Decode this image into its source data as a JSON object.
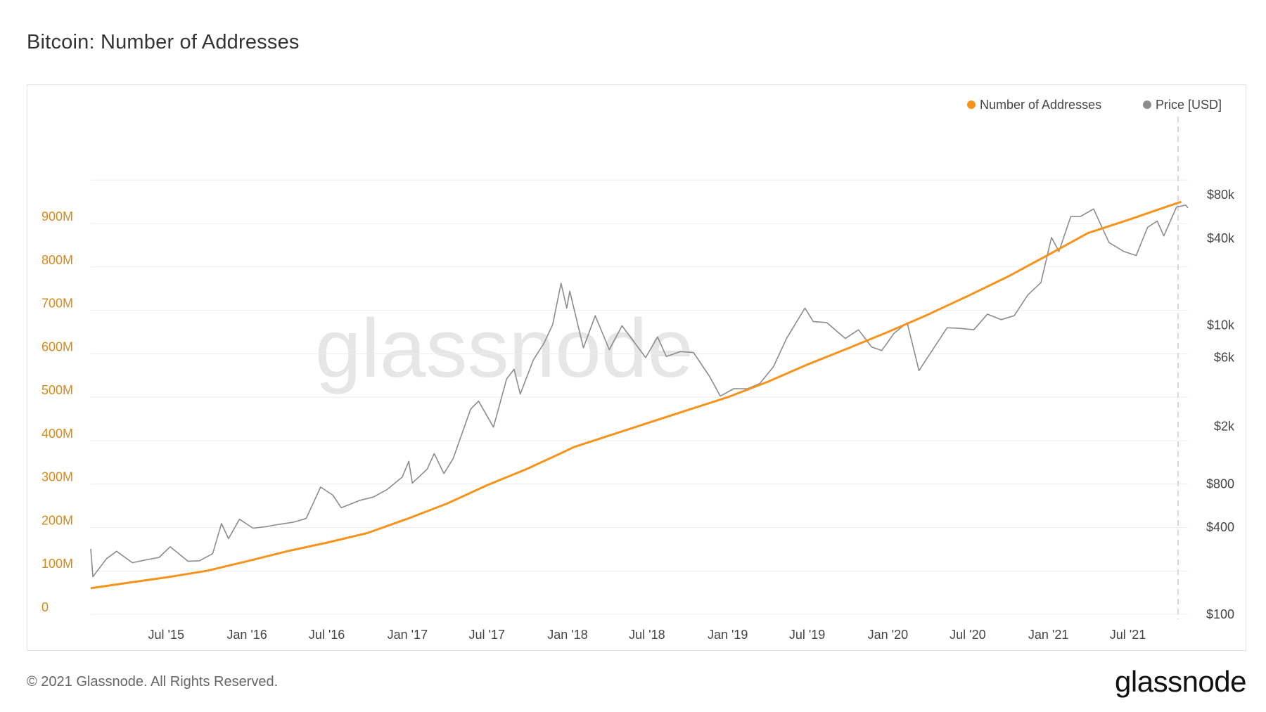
{
  "title": "Bitcoin: Number of Addresses",
  "footer": {
    "copyright": "© 2021 Glassnode. All Rights Reserved.",
    "brand": "glassnode"
  },
  "watermark": "glassnode",
  "colors": {
    "addresses": "#f7931a",
    "price": "#8c8c8c",
    "left_axis_text": "#d98a19",
    "right_axis_text": "#444444",
    "grid": "#eeeeee",
    "watermark": "#e6e6e6"
  },
  "chart_data": {
    "type": "line",
    "legend": [
      {
        "name": "Number of Addresses",
        "color": "#f7931a"
      },
      {
        "name": "Price [USD]",
        "color": "#8c8c8c"
      }
    ],
    "legend_position": "top-right",
    "x_range": [
      "2015-01-10",
      "2021-11-15"
    ],
    "x_ticks": [
      {
        "label": "Jul '15",
        "date": "2015-07-01"
      },
      {
        "label": "Jan '16",
        "date": "2016-01-01"
      },
      {
        "label": "Jul '16",
        "date": "2016-07-01"
      },
      {
        "label": "Jan '17",
        "date": "2017-01-01"
      },
      {
        "label": "Jul '17",
        "date": "2017-07-01"
      },
      {
        "label": "Jan '18",
        "date": "2018-01-01"
      },
      {
        "label": "Jul '18",
        "date": "2018-07-01"
      },
      {
        "label": "Jan '19",
        "date": "2019-01-01"
      },
      {
        "label": "Jul '19",
        "date": "2019-07-01"
      },
      {
        "label": "Jan '20",
        "date": "2020-01-01"
      },
      {
        "label": "Jul '20",
        "date": "2020-07-01"
      },
      {
        "label": "Jan '21",
        "date": "2021-01-01"
      },
      {
        "label": "Jul '21",
        "date": "2021-07-01"
      }
    ],
    "left_axis": {
      "scale": "linear",
      "range": [
        0,
        1000000000
      ],
      "ticks": [
        {
          "label": "0",
          "value": 0
        },
        {
          "label": "100M",
          "value": 100000000
        },
        {
          "label": "200M",
          "value": 200000000
        },
        {
          "label": "300M",
          "value": 300000000
        },
        {
          "label": "400M",
          "value": 400000000
        },
        {
          "label": "500M",
          "value": 500000000
        },
        {
          "label": "600M",
          "value": 600000000
        },
        {
          "label": "700M",
          "value": 700000000
        },
        {
          "label": "800M",
          "value": 800000000
        },
        {
          "label": "900M",
          "value": 900000000
        }
      ]
    },
    "right_axis": {
      "scale": "log",
      "range": [
        100,
        80000
      ],
      "ticks": [
        {
          "label": "$100",
          "value": 100
        },
        {
          "label": "$400",
          "value": 400
        },
        {
          "label": "$800",
          "value": 800
        },
        {
          "label": "$2k",
          "value": 2000
        },
        {
          "label": "$6k",
          "value": 6000
        },
        {
          "label": "$10k",
          "value": 10000
        },
        {
          "label": "$40k",
          "value": 40000
        },
        {
          "label": "$80k",
          "value": 80000
        }
      ]
    },
    "series": [
      {
        "name": "Number of Addresses",
        "axis": "left",
        "points": [
          [
            "2015-01-10",
            60000000
          ],
          [
            "2015-04-01",
            72000000
          ],
          [
            "2015-07-01",
            85000000
          ],
          [
            "2015-10-01",
            100000000
          ],
          [
            "2016-01-01",
            122000000
          ],
          [
            "2016-04-01",
            145000000
          ],
          [
            "2016-07-01",
            165000000
          ],
          [
            "2016-10-01",
            187000000
          ],
          [
            "2017-01-01",
            220000000
          ],
          [
            "2017-04-01",
            255000000
          ],
          [
            "2017-07-01",
            297000000
          ],
          [
            "2017-10-01",
            335000000
          ],
          [
            "2017-12-15",
            370000000
          ],
          [
            "2018-01-15",
            385000000
          ],
          [
            "2018-04-01",
            410000000
          ],
          [
            "2018-07-01",
            440000000
          ],
          [
            "2018-10-01",
            470000000
          ],
          [
            "2019-01-01",
            500000000
          ],
          [
            "2019-04-01",
            535000000
          ],
          [
            "2019-07-01",
            575000000
          ],
          [
            "2019-10-01",
            612000000
          ],
          [
            "2020-01-01",
            650000000
          ],
          [
            "2020-04-01",
            690000000
          ],
          [
            "2020-07-01",
            733000000
          ],
          [
            "2020-10-01",
            778000000
          ],
          [
            "2021-01-01",
            828000000
          ],
          [
            "2021-04-01",
            878000000
          ],
          [
            "2021-07-01",
            908000000
          ],
          [
            "2021-10-01",
            940000000
          ],
          [
            "2021-10-31",
            950000000
          ]
        ]
      },
      {
        "name": "Price [USD]",
        "axis": "right",
        "points": [
          [
            "2015-01-10",
            280
          ],
          [
            "2015-01-15",
            180
          ],
          [
            "2015-02-15",
            240
          ],
          [
            "2015-03-10",
            270
          ],
          [
            "2015-04-15",
            225
          ],
          [
            "2015-05-15",
            235
          ],
          [
            "2015-06-15",
            245
          ],
          [
            "2015-07-10",
            290
          ],
          [
            "2015-08-20",
            230
          ],
          [
            "2015-09-15",
            232
          ],
          [
            "2015-10-15",
            260
          ],
          [
            "2015-11-04",
            420
          ],
          [
            "2015-11-20",
            330
          ],
          [
            "2015-12-15",
            450
          ],
          [
            "2016-01-15",
            390
          ],
          [
            "2016-02-15",
            400
          ],
          [
            "2016-03-15",
            415
          ],
          [
            "2016-04-15",
            428
          ],
          [
            "2016-05-15",
            455
          ],
          [
            "2016-06-17",
            750
          ],
          [
            "2016-07-15",
            660
          ],
          [
            "2016-08-03",
            540
          ],
          [
            "2016-09-15",
            608
          ],
          [
            "2016-10-15",
            640
          ],
          [
            "2016-11-15",
            720
          ],
          [
            "2016-12-20",
            880
          ],
          [
            "2017-01-04",
            1130
          ],
          [
            "2017-01-12",
            800
          ],
          [
            "2017-02-15",
            1000
          ],
          [
            "2017-03-03",
            1280
          ],
          [
            "2017-03-25",
            930
          ],
          [
            "2017-04-15",
            1180
          ],
          [
            "2017-05-25",
            2600
          ],
          [
            "2017-06-12",
            2950
          ],
          [
            "2017-07-16",
            1950
          ],
          [
            "2017-08-15",
            4200
          ],
          [
            "2017-09-01",
            4900
          ],
          [
            "2017-09-15",
            3300
          ],
          [
            "2017-10-15",
            5700
          ],
          [
            "2017-11-08",
            7400
          ],
          [
            "2017-11-28",
            10000
          ],
          [
            "2017-12-17",
            19300
          ],
          [
            "2017-12-30",
            13000
          ],
          [
            "2018-01-06",
            17000
          ],
          [
            "2018-02-06",
            6900
          ],
          [
            "2018-03-05",
            11500
          ],
          [
            "2018-04-06",
            6700
          ],
          [
            "2018-05-05",
            9800
          ],
          [
            "2018-06-28",
            5900
          ],
          [
            "2018-07-25",
            8200
          ],
          [
            "2018-08-14",
            6000
          ],
          [
            "2018-09-15",
            6500
          ],
          [
            "2018-10-15",
            6400
          ],
          [
            "2018-11-20",
            4400
          ],
          [
            "2018-12-15",
            3200
          ],
          [
            "2019-01-15",
            3600
          ],
          [
            "2019-02-15",
            3600
          ],
          [
            "2019-03-15",
            3900
          ],
          [
            "2019-04-15",
            5100
          ],
          [
            "2019-05-15",
            8000
          ],
          [
            "2019-06-26",
            13000
          ],
          [
            "2019-07-15",
            10500
          ],
          [
            "2019-08-15",
            10300
          ],
          [
            "2019-09-26",
            8000
          ],
          [
            "2019-10-26",
            9200
          ],
          [
            "2019-11-25",
            7000
          ],
          [
            "2019-12-18",
            6600
          ],
          [
            "2020-01-15",
            8700
          ],
          [
            "2020-02-14",
            10300
          ],
          [
            "2020-03-12",
            4800
          ],
          [
            "2020-04-15",
            6900
          ],
          [
            "2020-05-15",
            9500
          ],
          [
            "2020-06-15",
            9400
          ],
          [
            "2020-07-15",
            9200
          ],
          [
            "2020-08-15",
            11800
          ],
          [
            "2020-09-15",
            10800
          ],
          [
            "2020-10-15",
            11500
          ],
          [
            "2020-11-15",
            16000
          ],
          [
            "2020-12-15",
            19500
          ],
          [
            "2021-01-08",
            40000
          ],
          [
            "2021-01-25",
            32000
          ],
          [
            "2021-02-21",
            56000
          ],
          [
            "2021-03-15",
            56000
          ],
          [
            "2021-04-14",
            63000
          ],
          [
            "2021-05-19",
            37000
          ],
          [
            "2021-06-22",
            32000
          ],
          [
            "2021-07-20",
            30000
          ],
          [
            "2021-08-15",
            47000
          ],
          [
            "2021-09-06",
            52000
          ],
          [
            "2021-09-21",
            41000
          ],
          [
            "2021-10-20",
            65000
          ],
          [
            "2021-11-10",
            67000
          ],
          [
            "2021-11-15",
            64000
          ]
        ]
      }
    ],
    "grid": true
  }
}
